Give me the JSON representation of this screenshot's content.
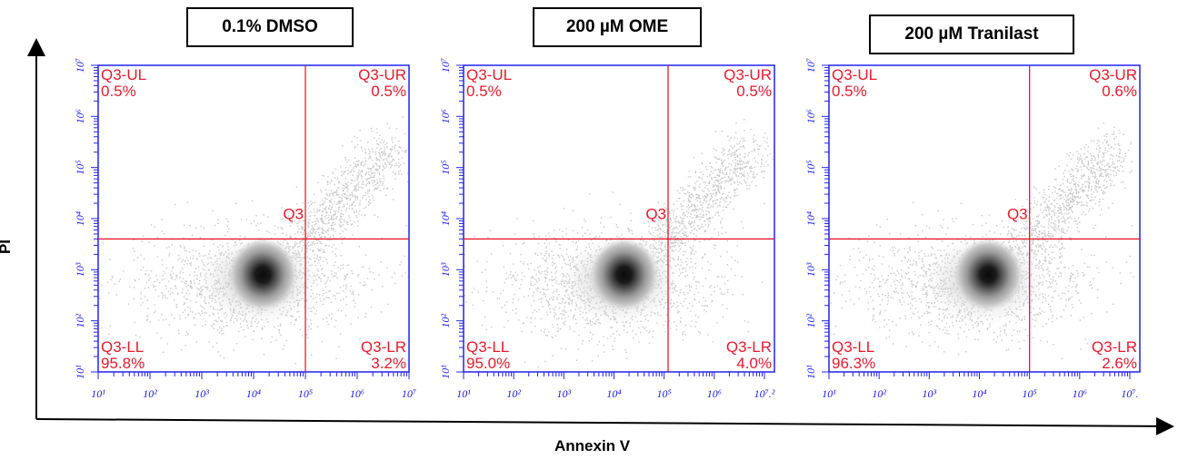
{
  "figure": {
    "y_axis_label": "PI",
    "x_axis_label": "Annexin V"
  },
  "colors": {
    "frame": "#2222ee",
    "gate": "#e8192c",
    "events_dense": "#111111",
    "events_sparse": "#c8c8c8"
  },
  "chart_data": [
    {
      "type": "scatter",
      "title": "0.1% DMSO",
      "x_scale": "log",
      "y_scale": "log",
      "x_tick_labels": [
        "10¹",
        "10²",
        "10³",
        "10⁴",
        "10⁵",
        "10⁶",
        "10⁷"
      ],
      "y_tick_labels": [
        "10¹",
        "10²",
        "10³",
        "10⁴",
        "10⁵",
        "10⁶",
        "10⁷"
      ],
      "xlim": [
        10,
        10000000
      ],
      "ylim": [
        10,
        10000000
      ],
      "gate_name": "Q3",
      "gate_x": 100000,
      "gate_y": 4000,
      "quadrants": [
        {
          "name": "Q3-UL",
          "percent": "0.5%"
        },
        {
          "name": "Q3-UR",
          "percent": "0.5%"
        },
        {
          "name": "Q3-LL",
          "percent": "95.8%"
        },
        {
          "name": "Q3-LR",
          "percent": "3.2%"
        }
      ],
      "population_center": [
        15000,
        800
      ]
    },
    {
      "type": "scatter",
      "title": "200 µM OME",
      "x_scale": "log",
      "y_scale": "log",
      "x_tick_labels": [
        "10¹",
        "10²",
        "10³",
        "10⁴",
        "10⁵",
        "10⁶",
        "10⁷.²"
      ],
      "y_tick_labels": [
        "10¹",
        "10²",
        "10³",
        "10⁴",
        "10⁵",
        "10⁶",
        "10⁷"
      ],
      "xlim": [
        10,
        15848931
      ],
      "ylim": [
        10,
        10000000
      ],
      "gate_name": "Q3",
      "gate_x": 120000,
      "gate_y": 4000,
      "quadrants": [
        {
          "name": "Q3-UL",
          "percent": "0.5%"
        },
        {
          "name": "Q3-UR",
          "percent": "0.5%"
        },
        {
          "name": "Q3-LL",
          "percent": "95.0%"
        },
        {
          "name": "Q3-LR",
          "percent": "4.0%"
        }
      ],
      "population_center": [
        16000,
        800
      ]
    },
    {
      "type": "scatter",
      "title": "200 µM Tranilast",
      "x_scale": "log",
      "y_scale": "log",
      "x_tick_labels": [
        "10¹",
        "10²",
        "10³",
        "10⁴",
        "10⁵",
        "10⁶",
        "10⁷."
      ],
      "y_tick_labels": [
        "10¹",
        "10²",
        "10³",
        "10⁴",
        "10⁵",
        "10⁶",
        "10⁷"
      ],
      "xlim": [
        10,
        15848931
      ],
      "ylim": [
        10,
        10000000
      ],
      "gate_name": "Q3",
      "gate_x": 100000,
      "gate_y": 4000,
      "quadrants": [
        {
          "name": "Q3-UL",
          "percent": "0.5%"
        },
        {
          "name": "Q3-UR",
          "percent": "0.6%"
        },
        {
          "name": "Q3-LL",
          "percent": "96.3%"
        },
        {
          "name": "Q3-LR",
          "percent": "2.6%"
        }
      ],
      "population_center": [
        15000,
        800
      ]
    }
  ]
}
